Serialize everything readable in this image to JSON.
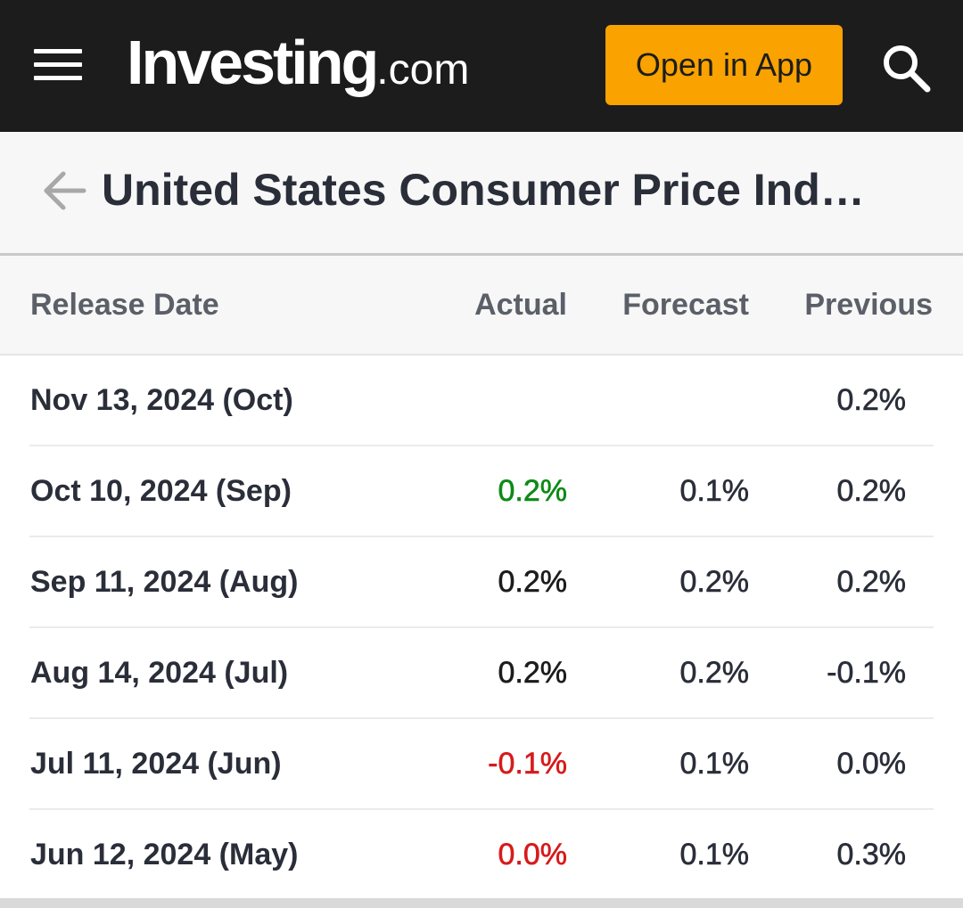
{
  "header": {
    "logo_main": "Investing",
    "logo_suffix": ".com",
    "open_app_label": "Open in App",
    "icons": {
      "menu": "hamburger-menu-icon",
      "search": "search-icon"
    }
  },
  "title_bar": {
    "title": "United States Consumer Price Ind…",
    "back_icon": "arrow-left-icon"
  },
  "table": {
    "columns": {
      "release_date": "Release Date",
      "actual": "Actual",
      "forecast": "Forecast",
      "previous": "Previous"
    },
    "rows": [
      {
        "date": "Nov 13, 2024 (Oct)",
        "actual": "",
        "actual_status": "none",
        "forecast": "",
        "previous": "0.2%"
      },
      {
        "date": "Oct 10, 2024 (Sep)",
        "actual": "0.2%",
        "actual_status": "better",
        "forecast": "0.1%",
        "previous": "0.2%"
      },
      {
        "date": "Sep 11, 2024 (Aug)",
        "actual": "0.2%",
        "actual_status": "neutral",
        "forecast": "0.2%",
        "previous": "0.2%"
      },
      {
        "date": "Aug 14, 2024 (Jul)",
        "actual": "0.2%",
        "actual_status": "neutral",
        "forecast": "0.2%",
        "previous": "-0.1%"
      },
      {
        "date": "Jul 11, 2024 (Jun)",
        "actual": "-0.1%",
        "actual_status": "worse",
        "forecast": "0.1%",
        "previous": "0.0%"
      },
      {
        "date": "Jun 12, 2024 (May)",
        "actual": "0.0%",
        "actual_status": "worse",
        "forecast": "0.1%",
        "previous": "0.3%"
      }
    ]
  },
  "colors": {
    "topbar_bg": "#1c1c1c",
    "accent_button": "#f9a200",
    "value_better": "#0e8a16",
    "value_worse": "#d71a1a",
    "value_neutral": "#1c1c1c"
  }
}
